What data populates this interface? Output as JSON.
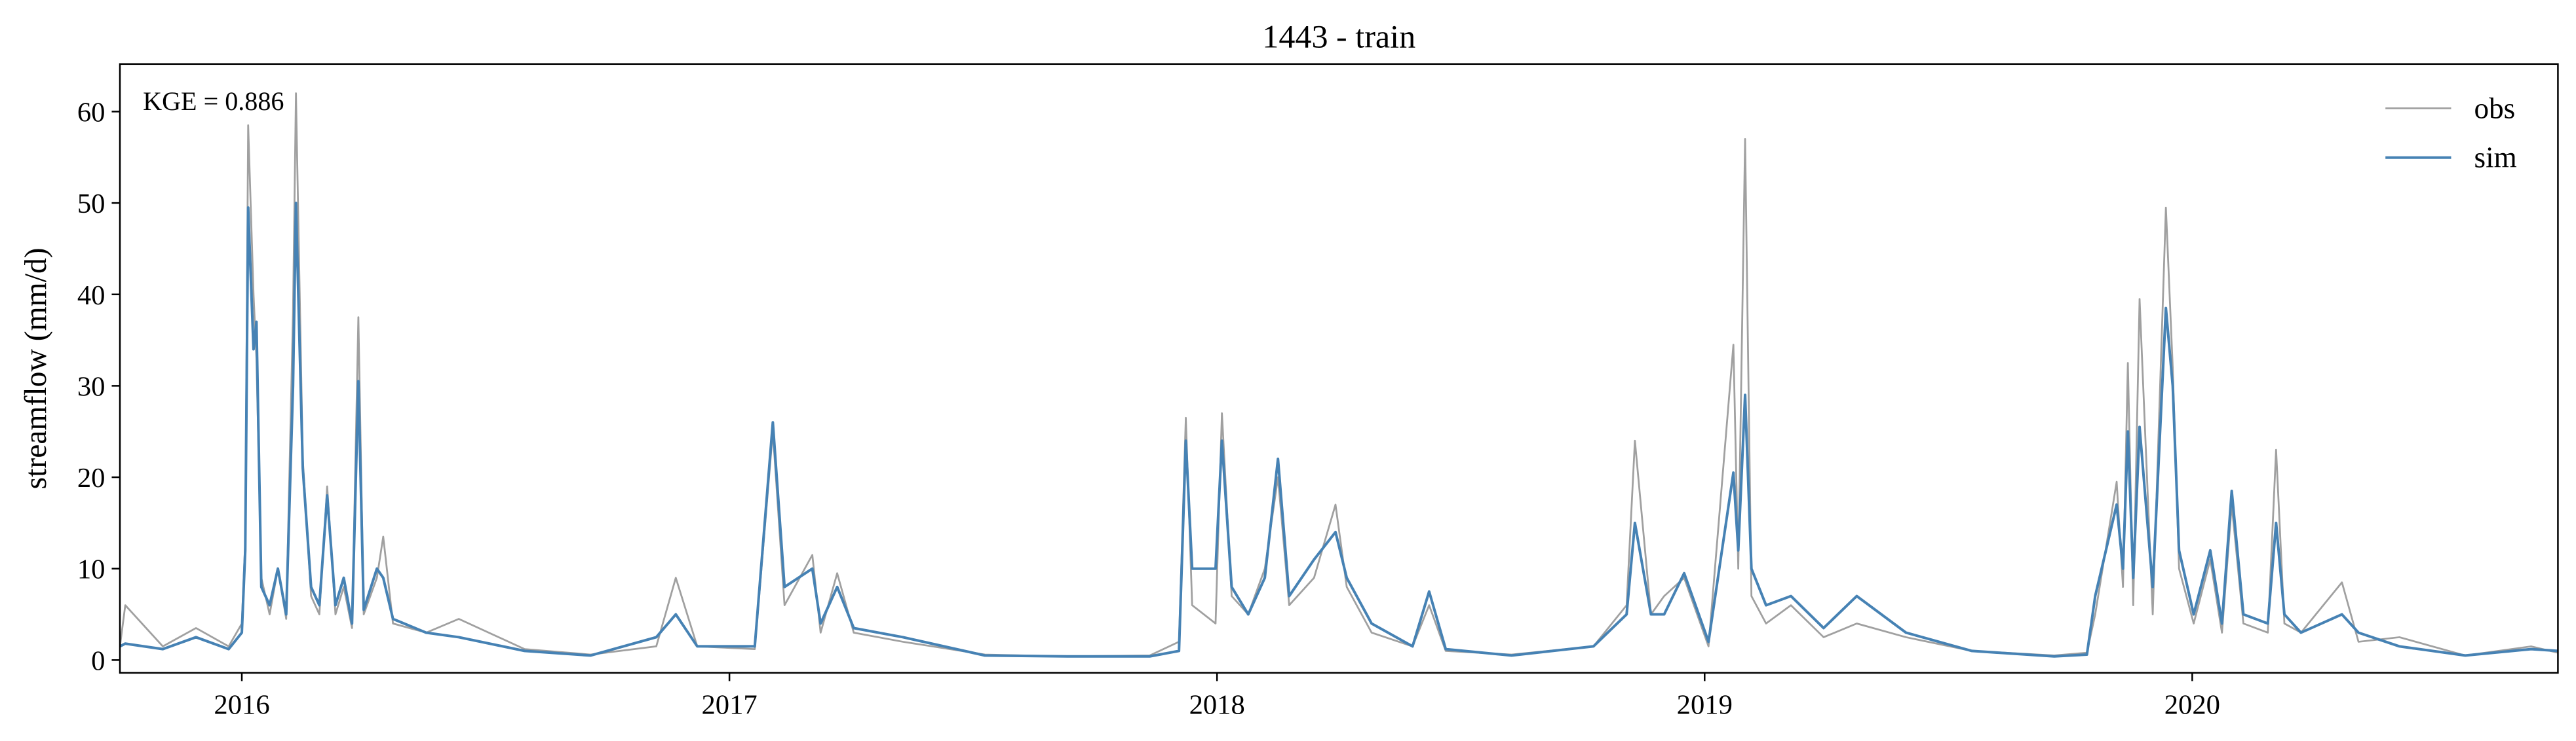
{
  "chart_data": {
    "type": "line",
    "title": "1443 - train",
    "ylabel": "streamflow (mm/d)",
    "annotation": "KGE = 0.886",
    "legend": "upper right",
    "xlim": [
      2015.75,
      2020.75
    ],
    "xticks": [
      2016,
      2017,
      2018,
      2019,
      2020
    ],
    "ylim": [
      -1.4,
      65.2
    ],
    "yticks": [
      0,
      10,
      20,
      30,
      40,
      50,
      60
    ],
    "x": [
      2015.75,
      2015.761,
      2015.838,
      2015.906,
      2015.973,
      2016.0,
      2016.007,
      2016.013,
      2016.024,
      2016.03,
      2016.04,
      2016.057,
      2016.074,
      2016.091,
      2016.105,
      2016.111,
      2016.125,
      2016.142,
      2016.159,
      2016.175,
      2016.192,
      2016.209,
      2016.226,
      2016.239,
      2016.25,
      2016.277,
      2016.29,
      2016.31,
      2016.378,
      2016.445,
      2016.58,
      2016.715,
      2016.85,
      2016.89,
      2016.934,
      2017.052,
      2017.089,
      2017.113,
      2017.17,
      2017.187,
      2017.221,
      2017.255,
      2017.356,
      2017.524,
      2017.693,
      2017.862,
      2017.922,
      2017.936,
      2017.949,
      2017.997,
      2018.01,
      2018.03,
      2018.064,
      2018.098,
      2018.125,
      2018.148,
      2018.199,
      2018.243,
      2018.266,
      2018.317,
      2018.401,
      2018.435,
      2018.469,
      2018.604,
      2018.772,
      2018.84,
      2018.857,
      2018.89,
      2018.917,
      2018.958,
      2019.008,
      2019.059,
      2019.069,
      2019.083,
      2019.096,
      2019.126,
      2019.177,
      2019.244,
      2019.312,
      2019.413,
      2019.548,
      2019.717,
      2019.784,
      2019.801,
      2019.845,
      2019.858,
      2019.868,
      2019.879,
      2019.892,
      2019.919,
      2019.946,
      2019.96,
      2019.973,
      2020.003,
      2020.037,
      2020.061,
      2020.081,
      2020.105,
      2020.155,
      2020.172,
      2020.189,
      2020.223,
      2020.307,
      2020.341,
      2020.425,
      2020.56,
      2020.695,
      2020.75
    ],
    "series": [
      {
        "name": "obs",
        "color": "#a0a0a0",
        "width": 1.1,
        "values": [
          1.5,
          6,
          1.5,
          3.5,
          1.5,
          4,
          13,
          58.5,
          40,
          33,
          9,
          5,
          10,
          4.5,
          38,
          62,
          22,
          7,
          5,
          19,
          5,
          8,
          3.5,
          37.5,
          5,
          9,
          13.5,
          4,
          3,
          4.5,
          1.2,
          0.6,
          1.5,
          9,
          1.5,
          1.2,
          25,
          6,
          11.5,
          3,
          9.5,
          3,
          2,
          0.6,
          0.4,
          0.5,
          2,
          26.5,
          6,
          4,
          27,
          7,
          5,
          10,
          20,
          6,
          9,
          17,
          8,
          3,
          1.5,
          6,
          1,
          0.6,
          1.5,
          6,
          24,
          5,
          7,
          9,
          1.5,
          34.5,
          10,
          57,
          7,
          4,
          6,
          2.5,
          4,
          2.5,
          1,
          0.5,
          0.8,
          5,
          19.5,
          8,
          32.5,
          6,
          39.5,
          5,
          49.5,
          32,
          10,
          4,
          11,
          3,
          17,
          4,
          3,
          23,
          4,
          3,
          8.5,
          2,
          2.5,
          0.5,
          1.5,
          0.8
        ]
      },
      {
        "name": "sim",
        "color": "#4682b4",
        "width": 1.6,
        "values": [
          1.5,
          1.8,
          1.2,
          2.5,
          1.2,
          3,
          12,
          49.5,
          34,
          37,
          8,
          6,
          10,
          5,
          30,
          50,
          21,
          8,
          6,
          18,
          6,
          9,
          4,
          30.5,
          5.5,
          10,
          9,
          4.5,
          3,
          2.5,
          1,
          0.5,
          2.5,
          5,
          1.5,
          1.5,
          26,
          8,
          10,
          4,
          8,
          3.5,
          2.5,
          0.5,
          0.4,
          0.4,
          1,
          24,
          10,
          10,
          24,
          8,
          5,
          9,
          22,
          7,
          11,
          14,
          9,
          4,
          1.5,
          7.5,
          1.2,
          0.5,
          1.5,
          5,
          15,
          5,
          5,
          9.5,
          2,
          20.5,
          12,
          29,
          10,
          6,
          7,
          3.5,
          7,
          3,
          1,
          0.4,
          0.6,
          7,
          17,
          10,
          25,
          9,
          25.5,
          8,
          38.5,
          30,
          12,
          5,
          12,
          4,
          18.5,
          5,
          4,
          15,
          5,
          3,
          5,
          3,
          1.5,
          0.5,
          1.2,
          1
        ]
      }
    ]
  }
}
